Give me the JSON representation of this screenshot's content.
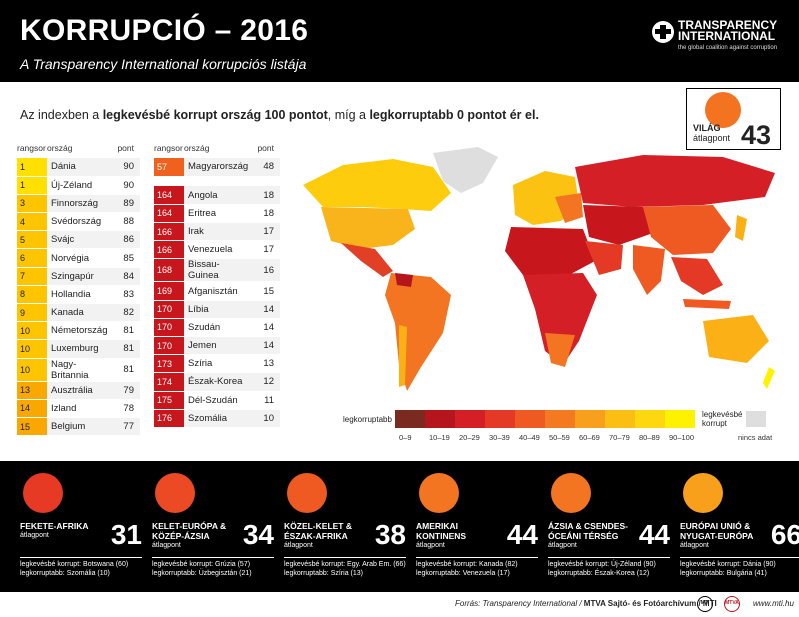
{
  "header": {
    "title": "KORRUPCIÓ – 2016",
    "subtitle": "A Transparency International korrupciós listája",
    "logo_line1": "TRANSPARENCY",
    "logo_line2": "INTERNATIONAL",
    "logo_tagline": "the global coalition against corruption"
  },
  "intro": {
    "p1": "Az indexben a ",
    "b1": "legkevésbé korrupt ország 100 pontot",
    "p2": ", míg a ",
    "b2": "legkorruptabb 0 pontot ér el."
  },
  "world": {
    "label": "VILÁG",
    "sub": "átlagpont",
    "score": "43",
    "color": "#f47321"
  },
  "table_headers": {
    "rank": "rangsor",
    "country": "ország",
    "points": "pont"
  },
  "table_left": [
    {
      "rank": "1",
      "country": "Dánia",
      "points": "90",
      "color": "#ffe000"
    },
    {
      "rank": "1",
      "country": "Új-Zéland",
      "points": "90",
      "color": "#ffe000"
    },
    {
      "rank": "3",
      "country": "Finnország",
      "points": "89",
      "color": "#fdc400"
    },
    {
      "rank": "4",
      "country": "Svédország",
      "points": "88",
      "color": "#fdc400"
    },
    {
      "rank": "5",
      "country": "Svájc",
      "points": "86",
      "color": "#fdc400"
    },
    {
      "rank": "6",
      "country": "Norvégia",
      "points": "85",
      "color": "#fdc400"
    },
    {
      "rank": "7",
      "country": "Szingapúr",
      "points": "84",
      "color": "#fdc400"
    },
    {
      "rank": "8",
      "country": "Hollandia",
      "points": "83",
      "color": "#fdc400"
    },
    {
      "rank": "9",
      "country": "Kanada",
      "points": "82",
      "color": "#fdc400"
    },
    {
      "rank": "10",
      "country": "Németország",
      "points": "81",
      "color": "#fdc400"
    },
    {
      "rank": "10",
      "country": "Luxemburg",
      "points": "81",
      "color": "#fdc400"
    },
    {
      "rank": "10",
      "country": "Nagy-Britannia",
      "points": "81",
      "color": "#fdc400"
    },
    {
      "rank": "13",
      "country": "Ausztrália",
      "points": "79",
      "color": "#f8a800"
    },
    {
      "rank": "14",
      "country": "Izland",
      "points": "78",
      "color": "#f8a800"
    },
    {
      "rank": "15",
      "country": "Belgium",
      "points": "77",
      "color": "#f8a800"
    }
  ],
  "table_right_top": {
    "rank": "57",
    "country": "Magyarország",
    "points": "48",
    "color": "#f0611d"
  },
  "table_right": [
    {
      "rank": "164",
      "country": "Angola",
      "points": "18",
      "color": "#c8161d"
    },
    {
      "rank": "164",
      "country": "Eritrea",
      "points": "18",
      "color": "#c8161d"
    },
    {
      "rank": "166",
      "country": "Irak",
      "points": "17",
      "color": "#c8161d"
    },
    {
      "rank": "166",
      "country": "Venezuela",
      "points": "17",
      "color": "#c8161d"
    },
    {
      "rank": "168",
      "country": "Bissau-Guinea",
      "points": "16",
      "color": "#c8161d"
    },
    {
      "rank": "169",
      "country": "Afganisztán",
      "points": "15",
      "color": "#c8161d"
    },
    {
      "rank": "170",
      "country": "Líbia",
      "points": "14",
      "color": "#c8161d"
    },
    {
      "rank": "170",
      "country": "Szudán",
      "points": "14",
      "color": "#c8161d"
    },
    {
      "rank": "170",
      "country": "Jemen",
      "points": "14",
      "color": "#c8161d"
    },
    {
      "rank": "173",
      "country": "Szíria",
      "points": "13",
      "color": "#c8161d"
    },
    {
      "rank": "174",
      "country": "Észak-Korea",
      "points": "12",
      "color": "#c8161d"
    },
    {
      "rank": "175",
      "country": "Dél-Szudán",
      "points": "11",
      "color": "#c8161d"
    },
    {
      "rank": "176",
      "country": "Szomália",
      "points": "10",
      "color": "#c8161d"
    }
  ],
  "legend": {
    "left": "legkorruptabb",
    "right_line1": "legkevésbé",
    "right_line2": "korrupt",
    "nodata": "nincs adat",
    "scale": [
      "0–9",
      "10–19",
      "20–29",
      "30–39",
      "40–49",
      "50–59",
      "60–69",
      "70–79",
      "80–89",
      "90–100"
    ],
    "colors": [
      "#7a2a1f",
      "#b5161d",
      "#d41f26",
      "#e43a25",
      "#ef5a23",
      "#f47a22",
      "#f8a01c",
      "#fbbf14",
      "#fdd80e",
      "#fff200"
    ]
  },
  "regions": [
    {
      "name1": "FEKETE-AFRIKA",
      "name2": "",
      "sub": "átlagpont",
      "score": "31",
      "color": "#e63a25",
      "least": "legkevésbé korrupt: Botswana (60)",
      "most": "legkorruptabb: Szomália (10)"
    },
    {
      "name1": "KELET-EURÓPA &",
      "name2": "KÖZÉP-ÁZSIA",
      "sub": "átlagpont",
      "score": "34",
      "color": "#ec4a25",
      "least": "legkevésbé korrupt: Grúzia (57)",
      "most": "legkorruptabb: Üzbegisztán (21)"
    },
    {
      "name1": "KÖZEL-KELET &",
      "name2": "ÉSZAK-AFRIKA",
      "sub": "átlagpont",
      "score": "38",
      "color": "#ef5a23",
      "least": "legkevésbé korrupt: Egy. Arab Em. (66)",
      "most": "legkorruptabb: Szíria (13)"
    },
    {
      "name1": "AMERIKAI",
      "name2": "KONTINENS",
      "sub": "átlagpont",
      "score": "44",
      "color": "#f37522",
      "least": "legkevésbé korrupt: Kanada (82)",
      "most": "legkorruptabb: Venezuela (17)"
    },
    {
      "name1": "ÁZSIA & CSENDES-",
      "name2": "ÓCEÁNI TÉRSÉG",
      "sub": "átlagpont",
      "score": "44",
      "color": "#f37522",
      "least": "legkevésbé korrupt: Új-Zéland (90)",
      "most": "legkorruptabb: Észak-Korea (12)"
    },
    {
      "name1": "EURÓPAI UNIÓ &",
      "name2": "NYUGAT-EURÓPA",
      "sub": "átlagpont",
      "score": "66",
      "color": "#f8a01c",
      "least": "legkevésbé korrupt: Dánia (90)",
      "most": "legkorruptabb: Bulgária (41)"
    }
  ],
  "footer": {
    "source_prefix": "Forrás: Transparency International / ",
    "source_bold": "MTVA Sajtó- és Fotóarchívum / MTI",
    "mark1": "MTI",
    "mark2": "MTVA",
    "url": "www.mti.hu"
  }
}
